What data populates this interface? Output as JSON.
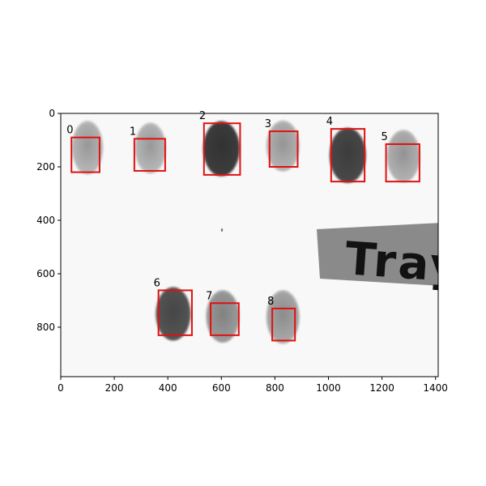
{
  "image": {
    "width": 1410,
    "height": 985,
    "tray_label": "Tray",
    "background_color": "#f8f8f8",
    "frame_color": "#000000",
    "box_color": "#e01010"
  },
  "axes": {
    "x_ticks": [
      0,
      200,
      400,
      600,
      800,
      1000,
      1200,
      1400
    ],
    "y_ticks": [
      0,
      200,
      400,
      600,
      800
    ],
    "x_range": [
      0,
      1410
    ],
    "y_range": [
      0,
      985
    ],
    "y_inverted": true
  },
  "seeds": [
    {
      "cx": 100,
      "cy": 128,
      "rx": 58,
      "ry": 100,
      "shade": "#b8b8b8"
    },
    {
      "cx": 335,
      "cy": 130,
      "rx": 58,
      "ry": 95,
      "shade": "#b9b9b9"
    },
    {
      "cx": 600,
      "cy": 132,
      "rx": 68,
      "ry": 103,
      "shade": "#3e3e3e"
    },
    {
      "cx": 830,
      "cy": 122,
      "rx": 62,
      "ry": 95,
      "shade": "#b5b5b5"
    },
    {
      "cx": 1072,
      "cy": 157,
      "rx": 68,
      "ry": 103,
      "shade": "#4a4a4a"
    },
    {
      "cx": 1280,
      "cy": 160,
      "rx": 62,
      "ry": 98,
      "shade": "#b3b3b3"
    },
    {
      "cx": 420,
      "cy": 750,
      "rx": 65,
      "ry": 100,
      "shade": "#555555"
    },
    {
      "cx": 605,
      "cy": 760,
      "rx": 62,
      "ry": 98,
      "shade": "#9d9d9d"
    },
    {
      "cx": 830,
      "cy": 762,
      "rx": 62,
      "ry": 100,
      "shade": "#aaaaaa"
    }
  ],
  "boxes": [
    {
      "label": "0",
      "x1": 40,
      "y1": 90,
      "x2": 145,
      "y2": 220
    },
    {
      "label": "1",
      "x1": 275,
      "y1": 95,
      "x2": 390,
      "y2": 215
    },
    {
      "label": "2",
      "x1": 535,
      "y1": 37,
      "x2": 670,
      "y2": 230
    },
    {
      "label": "3",
      "x1": 780,
      "y1": 67,
      "x2": 885,
      "y2": 200
    },
    {
      "label": "4",
      "x1": 1010,
      "y1": 58,
      "x2": 1135,
      "y2": 255
    },
    {
      "label": "5",
      "x1": 1215,
      "y1": 115,
      "x2": 1340,
      "y2": 255
    },
    {
      "label": "6",
      "x1": 365,
      "y1": 662,
      "x2": 490,
      "y2": 830
    },
    {
      "label": "7",
      "x1": 560,
      "y1": 710,
      "x2": 665,
      "y2": 830
    },
    {
      "label": "8",
      "x1": 790,
      "y1": 730,
      "x2": 875,
      "y2": 850
    }
  ]
}
